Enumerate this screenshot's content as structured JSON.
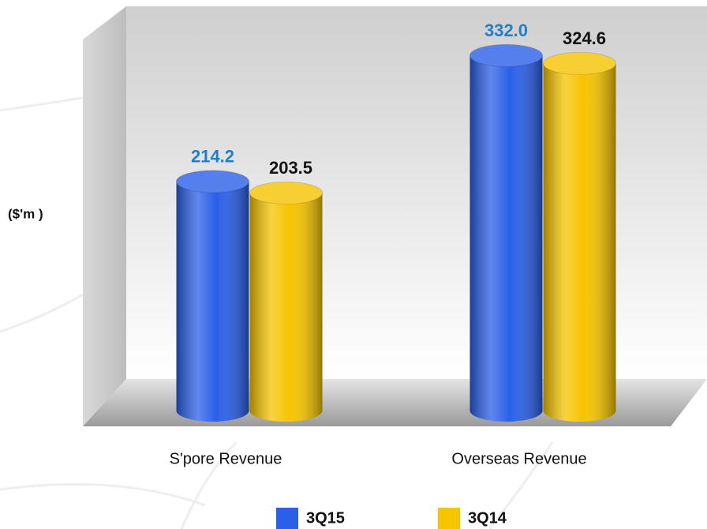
{
  "chart_data": {
    "type": "bar",
    "y_label": "($'m )",
    "categories": [
      "S'pore Revenue",
      "Overseas Revenue"
    ],
    "series": [
      {
        "name": "3Q15",
        "color": "#2a5fe8",
        "label_color": "#1f7fc9",
        "values": [
          214.2,
          332.0
        ],
        "value_labels": [
          "214.2",
          "332.0"
        ]
      },
      {
        "name": "3Q14",
        "color": "#f6c400",
        "label_color": "#111111",
        "values": [
          203.5,
          324.6
        ],
        "value_labels": [
          "203.5",
          "324.6"
        ]
      }
    ],
    "ylim": [
      0,
      350
    ]
  }
}
